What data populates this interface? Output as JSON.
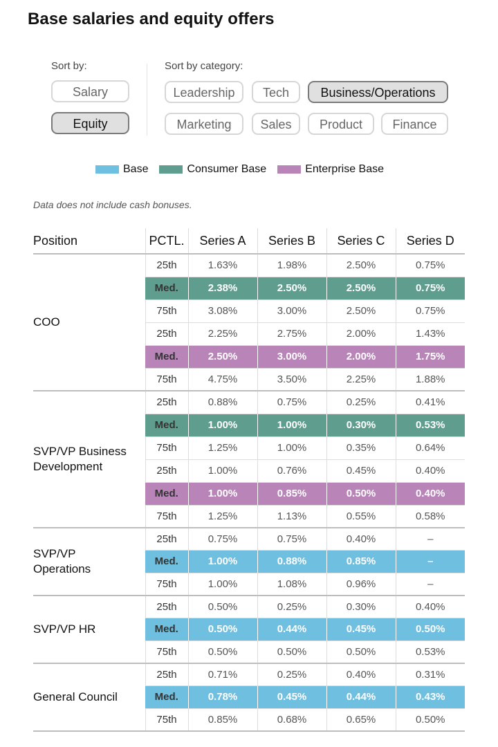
{
  "title": "Base salaries and equity offers",
  "sort_by": {
    "label": "Sort by:",
    "options": [
      "Salary",
      "Equity"
    ],
    "active": "Equity"
  },
  "sort_by_category": {
    "label": "Sort by category:",
    "options": [
      "Leadership",
      "Tech",
      "Business/Operations",
      "Marketing",
      "Sales",
      "Product",
      "Finance"
    ],
    "active": "Business/Operations"
  },
  "legend": [
    {
      "label": "Base",
      "color": "#6fbfe0"
    },
    {
      "label": "Consumer Base",
      "color": "#5f9e8e"
    },
    {
      "label": "Enterprise Base",
      "color": "#b985b8"
    }
  ],
  "note": "Data does not include cash bonuses.",
  "table": {
    "headers": [
      "Position",
      "PCTL.",
      "Series A",
      "Series B",
      "Series C",
      "Series D"
    ],
    "groups": [
      {
        "position": "COO",
        "rows": [
          {
            "pctl": "25th",
            "values": [
              "1.63%",
              "1.98%",
              "2.50%",
              "0.75%"
            ]
          },
          {
            "pctl": "Med.",
            "values": [
              "2.38%",
              "2.50%",
              "2.50%",
              "0.75%"
            ],
            "highlight": "consumer"
          },
          {
            "pctl": "75th",
            "values": [
              "3.08%",
              "3.00%",
              "2.50%",
              "0.75%"
            ]
          },
          {
            "pctl": "25th",
            "values": [
              "2.25%",
              "2.75%",
              "2.00%",
              "1.43%"
            ]
          },
          {
            "pctl": "Med.",
            "values": [
              "2.50%",
              "3.00%",
              "2.00%",
              "1.75%"
            ],
            "highlight": "enterprise"
          },
          {
            "pctl": "75th",
            "values": [
              "4.75%",
              "3.50%",
              "2.25%",
              "1.88%"
            ]
          }
        ]
      },
      {
        "position": "SVP/VP Business Development",
        "rows": [
          {
            "pctl": "25th",
            "values": [
              "0.88%",
              "0.75%",
              "0.25%",
              "0.41%"
            ]
          },
          {
            "pctl": "Med.",
            "values": [
              "1.00%",
              "1.00%",
              "0.30%",
              "0.53%"
            ],
            "highlight": "consumer"
          },
          {
            "pctl": "75th",
            "values": [
              "1.25%",
              "1.00%",
              "0.35%",
              "0.64%"
            ]
          },
          {
            "pctl": "25th",
            "values": [
              "1.00%",
              "0.76%",
              "0.45%",
              "0.40%"
            ]
          },
          {
            "pctl": "Med.",
            "values": [
              "1.00%",
              "0.85%",
              "0.50%",
              "0.40%"
            ],
            "highlight": "enterprise"
          },
          {
            "pctl": "75th",
            "values": [
              "1.25%",
              "1.13%",
              "0.55%",
              "0.58%"
            ]
          }
        ]
      },
      {
        "position": "SVP/VP Operations",
        "rows": [
          {
            "pctl": "25th",
            "values": [
              "0.75%",
              "0.75%",
              "0.40%",
              "–"
            ]
          },
          {
            "pctl": "Med.",
            "values": [
              "1.00%",
              "0.88%",
              "0.85%",
              "–"
            ],
            "highlight": "base"
          },
          {
            "pctl": "75th",
            "values": [
              "1.00%",
              "1.08%",
              "0.96%",
              "–"
            ]
          }
        ]
      },
      {
        "position": "SVP/VP HR",
        "rows": [
          {
            "pctl": "25th",
            "values": [
              "0.50%",
              "0.25%",
              "0.30%",
              "0.40%"
            ]
          },
          {
            "pctl": "Med.",
            "values": [
              "0.50%",
              "0.44%",
              "0.45%",
              "0.50%"
            ],
            "highlight": "base"
          },
          {
            "pctl": "75th",
            "values": [
              "0.50%",
              "0.50%",
              "0.50%",
              "0.53%"
            ]
          }
        ]
      },
      {
        "position": "General Council",
        "rows": [
          {
            "pctl": "25th",
            "values": [
              "0.71%",
              "0.25%",
              "0.40%",
              "0.31%"
            ]
          },
          {
            "pctl": "Med.",
            "values": [
              "0.78%",
              "0.45%",
              "0.44%",
              "0.43%"
            ],
            "highlight": "base"
          },
          {
            "pctl": "75th",
            "values": [
              "0.85%",
              "0.68%",
              "0.65%",
              "0.50%"
            ]
          }
        ]
      }
    ]
  }
}
